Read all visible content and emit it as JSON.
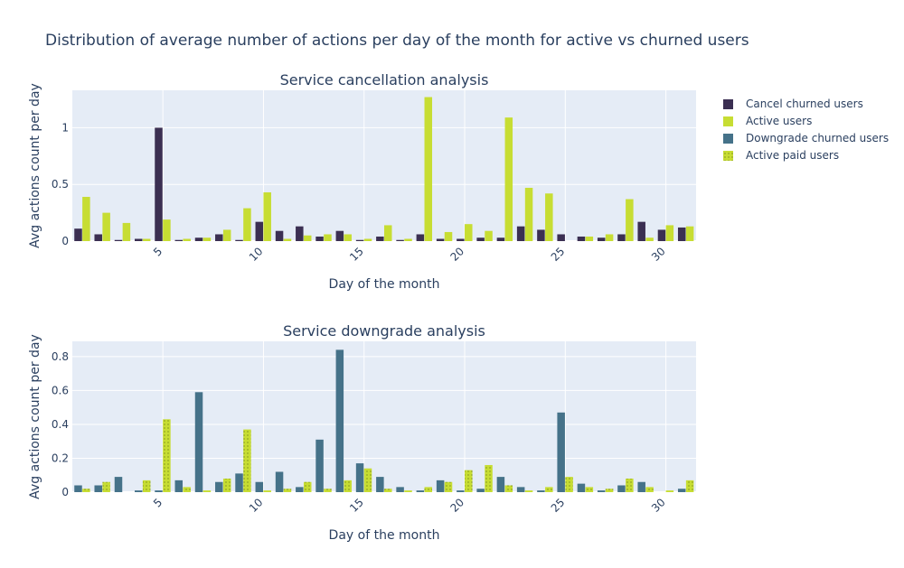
{
  "figure": {
    "title": "Distribution of average number of actions per day of the month for active vs churned users"
  },
  "legend": {
    "placement": "right",
    "items": [
      {
        "label": "Cancel churned users",
        "color": "#3b2f52",
        "pattern": "solid"
      },
      {
        "label": "Active users",
        "color": "#c7dd33",
        "pattern": "solid"
      },
      {
        "label": "Downgrade churned users",
        "color": "#457289",
        "pattern": "solid"
      },
      {
        "label": "Active paid users",
        "color": "#c7dd33",
        "pattern": "dotted"
      }
    ]
  },
  "chart_data": [
    {
      "type": "bar",
      "title": "Service cancellation analysis",
      "xlabel": "Day of the month",
      "ylabel": "Avg actions count per day",
      "xlim": [
        0.5,
        31.5
      ],
      "ylim": [
        0,
        1.33
      ],
      "xticks": [
        5,
        10,
        15,
        20,
        25,
        30
      ],
      "yticks": [
        0,
        0.5,
        1
      ],
      "grid": true,
      "x": [
        1,
        2,
        3,
        4,
        5,
        6,
        7,
        8,
        9,
        10,
        11,
        12,
        13,
        14,
        15,
        16,
        17,
        18,
        19,
        20,
        21,
        22,
        23,
        24,
        25,
        26,
        27,
        28,
        29,
        30,
        31
      ],
      "series": [
        {
          "name": "Cancel churned users",
          "color": "#3b2f52",
          "pattern": "solid",
          "values": [
            0.11,
            0.06,
            0.01,
            0.02,
            1.0,
            0.01,
            0.03,
            0.06,
            0.01,
            0.17,
            0.09,
            0.13,
            0.04,
            0.09,
            0.01,
            0.04,
            0.01,
            0.06,
            0.02,
            0.02,
            0.03,
            0.03,
            0.13,
            0.1,
            0.06,
            0.04,
            0.03,
            0.06,
            0.17,
            0.1,
            0.12
          ]
        },
        {
          "name": "Active users",
          "color": "#c7dd33",
          "pattern": "solid",
          "values": [
            0.39,
            0.25,
            0.16,
            0.02,
            0.19,
            0.02,
            0.03,
            0.1,
            0.29,
            0.43,
            0.02,
            0.05,
            0.06,
            0.06,
            0.02,
            0.14,
            0.02,
            1.27,
            0.08,
            0.15,
            0.09,
            1.09,
            0.47,
            0.42,
            0.0,
            0.04,
            0.06,
            0.37,
            0.03,
            0.14,
            0.13
          ]
        }
      ]
    },
    {
      "type": "bar",
      "title": "Service downgrade analysis",
      "xlabel": "Day of the month",
      "ylabel": "Avg actions count per day",
      "xlim": [
        0.5,
        31.5
      ],
      "ylim": [
        0,
        0.89
      ],
      "xticks": [
        5,
        10,
        15,
        20,
        25,
        30
      ],
      "yticks": [
        0,
        0.2,
        0.4,
        0.6,
        0.8
      ],
      "grid": true,
      "x": [
        1,
        2,
        3,
        4,
        5,
        6,
        7,
        8,
        9,
        10,
        11,
        12,
        13,
        14,
        15,
        16,
        17,
        18,
        19,
        20,
        21,
        22,
        23,
        24,
        25,
        26,
        27,
        28,
        29,
        30,
        31
      ],
      "series": [
        {
          "name": "Downgrade churned users",
          "color": "#457289",
          "pattern": "solid",
          "values": [
            0.04,
            0.04,
            0.09,
            0.01,
            0.01,
            0.07,
            0.59,
            0.06,
            0.11,
            0.06,
            0.12,
            0.03,
            0.31,
            0.84,
            0.17,
            0.09,
            0.03,
            0.01,
            0.07,
            0.01,
            0.02,
            0.09,
            0.03,
            0.01,
            0.47,
            0.05,
            0.01,
            0.04,
            0.06,
            0.0,
            0.02
          ]
        },
        {
          "name": "Active paid users",
          "color": "#c7dd33",
          "pattern": "dotted",
          "values": [
            0.02,
            0.06,
            0.0,
            0.07,
            0.43,
            0.03,
            0.01,
            0.08,
            0.37,
            0.01,
            0.02,
            0.06,
            0.02,
            0.07,
            0.14,
            0.02,
            0.01,
            0.03,
            0.06,
            0.13,
            0.16,
            0.04,
            0.01,
            0.03,
            0.09,
            0.03,
            0.02,
            0.08,
            0.03,
            0.01,
            0.07
          ]
        }
      ]
    }
  ]
}
